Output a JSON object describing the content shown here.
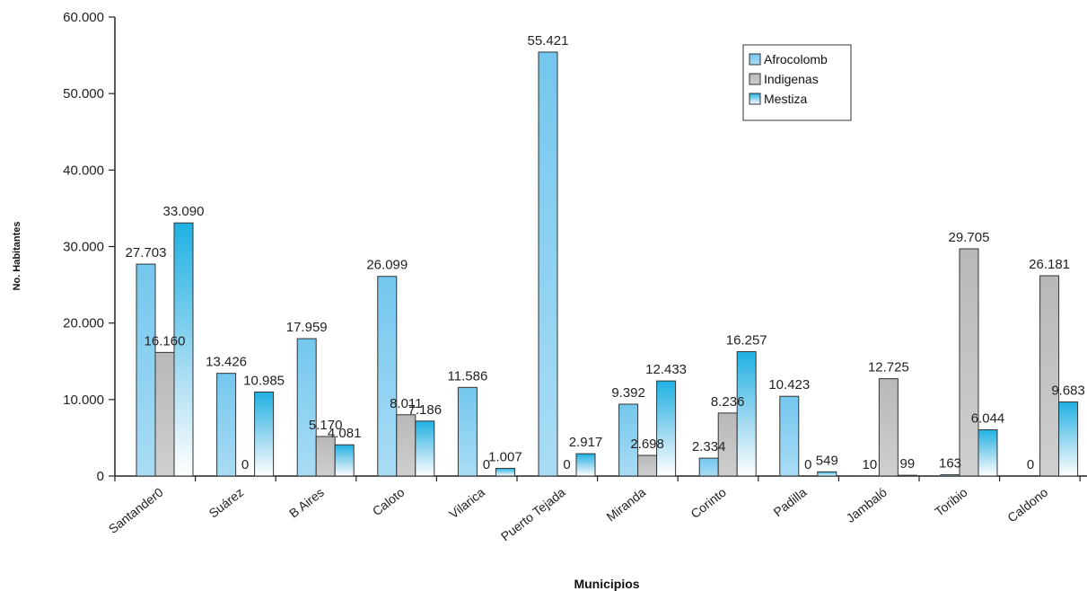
{
  "chart_data": {
    "type": "bar",
    "title": "",
    "xlabel": "Municipios",
    "ylabel": "No. Habitantes",
    "ylim": [
      0,
      60000
    ],
    "yticks": [
      {
        "value": 0,
        "label": "0"
      },
      {
        "value": 10000,
        "label": "10.000"
      },
      {
        "value": 20000,
        "label": "20.000"
      },
      {
        "value": 30000,
        "label": "30.000"
      },
      {
        "value": 40000,
        "label": "40.000"
      },
      {
        "value": 50000,
        "label": "50.000"
      },
      {
        "value": 60000,
        "label": "60.000"
      }
    ],
    "grid": false,
    "legend_position": "top-right",
    "categories": [
      "Santander0",
      "Suárez",
      "B Aires",
      "Caloto",
      "Vilarica",
      "Puerto Tejada",
      "Miranda",
      "Corinto",
      "Padilla",
      "Jambaló",
      "Toribio",
      "Caldono"
    ],
    "series": [
      {
        "name": "Afrocolomb",
        "color": "#7ecbef",
        "values": [
          27703,
          13426,
          17959,
          26099,
          11586,
          55421,
          9392,
          2334,
          10423,
          10,
          163,
          0
        ],
        "labels": [
          "27.703",
          "13.426",
          "17.959",
          "26.099",
          "11.586",
          "55.421",
          "9.392",
          "2.334",
          "10.423",
          "10",
          "163",
          "0"
        ]
      },
      {
        "name": "Indigenas",
        "color": "#bdbdbd",
        "values": [
          16160,
          0,
          5170,
          8011,
          0,
          0,
          2698,
          8236,
          0,
          12725,
          29705,
          26181
        ],
        "labels": [
          "16.160",
          "0",
          "5.170",
          "8.011",
          "0",
          "0",
          "2.698",
          "8.236",
          "0",
          "12.725",
          "29.705",
          "26.181"
        ]
      },
      {
        "name": "Mestiza",
        "color": "#29b6e6",
        "values": [
          33090,
          10985,
          4081,
          7186,
          1007,
          2917,
          12433,
          16257,
          549,
          99,
          6044,
          9683
        ],
        "labels": [
          "33.090",
          "10.985",
          "4.081",
          "7.186",
          "1.007",
          "2.917",
          "12.433",
          "16.257",
          "549",
          "99",
          "6.044",
          "9.683"
        ]
      }
    ]
  }
}
